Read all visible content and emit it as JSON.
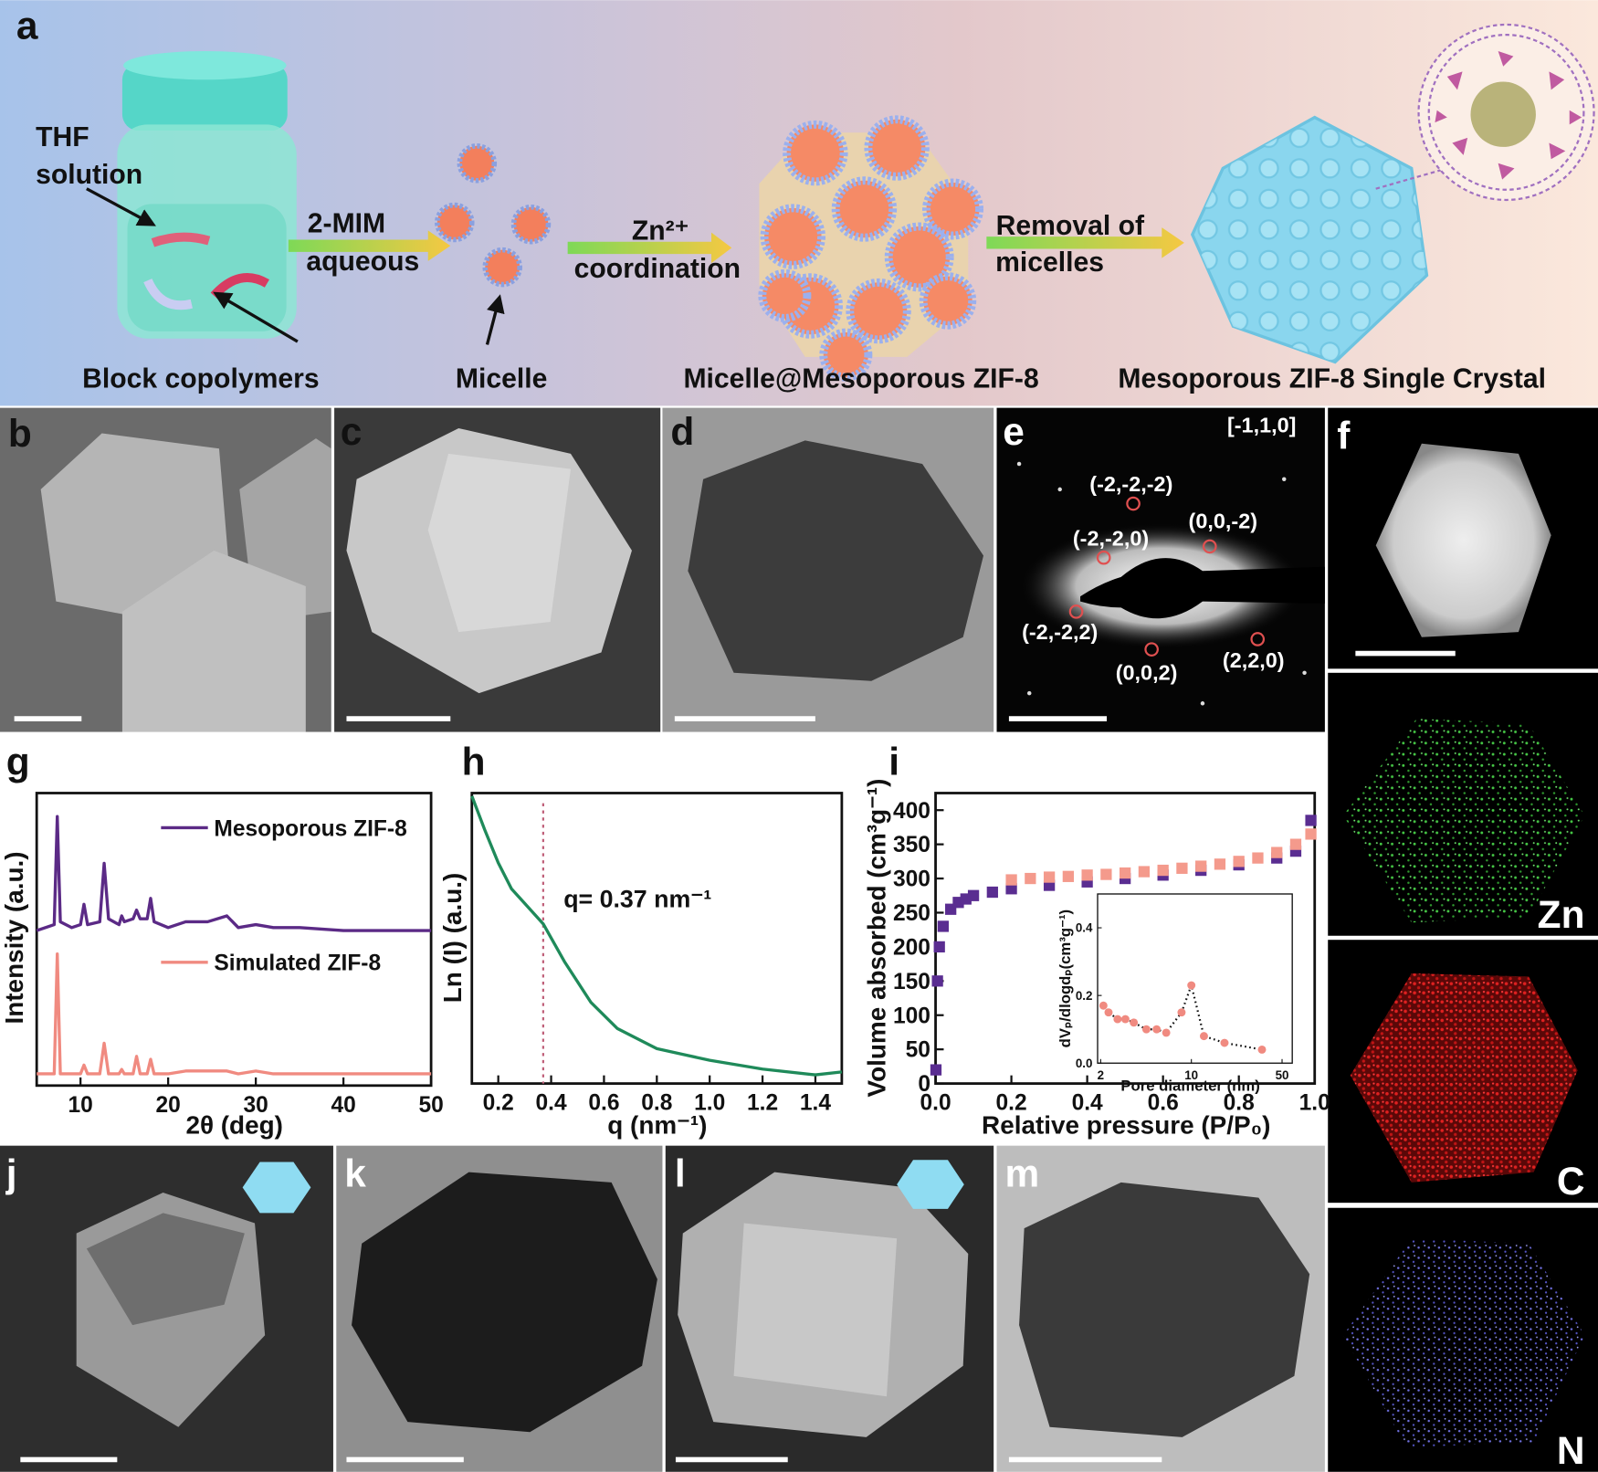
{
  "panel_labels": [
    "a",
    "b",
    "c",
    "d",
    "e",
    "f",
    "g",
    "h",
    "i",
    "j",
    "k",
    "l",
    "m"
  ],
  "schematic": {
    "thf": [
      "THF",
      "solution"
    ],
    "block_copolymers": "Block copolymers",
    "step1": [
      "2-MIM",
      "aqueous"
    ],
    "micelle": "Micelle",
    "step2": [
      "Zn²⁺",
      "coordination"
    ],
    "micelle_zif": "Micelle@Mesoporous ZIF-8",
    "step3": [
      "Removal of",
      "micelles"
    ],
    "product": "Mesoporous ZIF-8 Single Crystal"
  },
  "saed": {
    "zone_axis": "[-1,1,0]",
    "spots": [
      "(-2,-2,-2)",
      "(-2,-2,0)",
      "(0,0,-2)",
      "(-2,-2,2)",
      "(0,0,2)",
      "(2,2,0)"
    ]
  },
  "eds": [
    "Zn",
    "C",
    "N"
  ],
  "chart_data": [
    {
      "type": "line",
      "x_label": "2θ (deg)",
      "y_label": "Intensity (a.u.)",
      "x": [
        5,
        7,
        7.35,
        7.7,
        9,
        10,
        10.4,
        10.8,
        12.2,
        12.7,
        13.2,
        14.4,
        14.7,
        15,
        16,
        16.4,
        16.8,
        17.6,
        18,
        18.4,
        20,
        22,
        24.5,
        26.7,
        28,
        30,
        32,
        35,
        40,
        45,
        50
      ],
      "series": [
        {
          "name": "Mesoporous ZIF-8",
          "color": "#5b2a86",
          "values": [
            53,
            55,
            92,
            56,
            54,
            55,
            62,
            55,
            56,
            76,
            57,
            55,
            58,
            56,
            57,
            60,
            57,
            57,
            64,
            56,
            54,
            56,
            56,
            58,
            54,
            55,
            54,
            54,
            53,
            53,
            53
          ]
        },
        {
          "name": "Simulated ZIF-8",
          "color": "#f08a80",
          "values": [
            4,
            4,
            45,
            4,
            4,
            4,
            7,
            4,
            4,
            14.5,
            4,
            4,
            5.5,
            4,
            4,
            10,
            4,
            4,
            9,
            4,
            4,
            5,
            5,
            5,
            4,
            5,
            4,
            4,
            4,
            4,
            4
          ]
        }
      ],
      "xlim": [
        5,
        50
      ],
      "xticks": [
        10,
        20,
        30,
        40,
        50
      ],
      "ylim": [
        0,
        100
      ]
    },
    {
      "type": "line",
      "x_label": "q (nm⁻¹)",
      "y_label": "Ln (I) (a.u.)",
      "annotation": "q= 0.37 nm⁻¹",
      "vline": 0.37,
      "x": [
        0.1,
        0.15,
        0.2,
        0.25,
        0.3,
        0.37,
        0.45,
        0.55,
        0.65,
        0.8,
        0.9,
        1.0,
        1.2,
        1.4,
        1.5
      ],
      "series": [
        {
          "color": "#1f8a5a",
          "values": [
            99,
            87,
            76,
            67,
            62,
            55,
            42,
            28,
            19,
            12,
            10,
            8,
            5,
            3,
            4
          ]
        }
      ],
      "xlim": [
        0.1,
        1.5
      ],
      "xticks": [
        0.2,
        0.4,
        0.6,
        0.8,
        {
          "value": 1,
          "label": "1.0"
        },
        1.2,
        1.4
      ],
      "ylim": [
        0,
        100
      ]
    },
    {
      "type": "scatter",
      "x_label": "Relative pressure (P/P₀)",
      "y_label": "Volume absorbed (cm³g⁻¹)",
      "series": [
        {
          "color": "#5a2d91",
          "x": [
            0.001,
            0.005,
            0.01,
            0.02,
            0.04,
            0.06,
            0.08,
            0.1,
            0.15,
            0.2,
            0.3,
            0.4,
            0.5,
            0.6,
            0.7,
            0.8,
            0.9,
            0.95,
            0.99
          ],
          "values": [
            20,
            150,
            200,
            230,
            255,
            265,
            270,
            275,
            280,
            285,
            290,
            295,
            300,
            305,
            312,
            320,
            330,
            340,
            385
          ]
        },
        {
          "color": "#f49a8c",
          "x": [
            0.2,
            0.25,
            0.3,
            0.35,
            0.4,
            0.45,
            0.5,
            0.55,
            0.6,
            0.65,
            0.7,
            0.75,
            0.8,
            0.85,
            0.9,
            0.95,
            0.99
          ],
          "values": [
            298,
            300,
            302,
            303,
            305,
            306,
            308,
            310,
            312,
            315,
            318,
            321,
            325,
            330,
            338,
            350,
            365
          ]
        }
      ],
      "xlim": [
        0,
        1
      ],
      "xticks": [
        {
          "value": 0,
          "label": "0.0"
        },
        0.2,
        0.4,
        0.6,
        0.8,
        {
          "value": 1,
          "label": "1.0"
        }
      ],
      "ylim": [
        0,
        425
      ],
      "yticks": [
        0,
        50,
        100,
        150,
        200,
        250,
        300,
        350,
        400
      ],
      "inset": {
        "type": "line",
        "line_style": "dotted",
        "marker": "circle",
        "xscale": "log",
        "x_label": "Pore diameter (nm)",
        "y_label": "dVₚ/dlogdₚ(cm³g⁻¹)",
        "x": [
          2.1,
          2.3,
          2.7,
          3.1,
          3.6,
          4.5,
          5.4,
          6.4,
          8.4,
          10,
          12.5,
          18,
          35
        ],
        "series": [
          {
            "color": "#f08a80",
            "values": [
              0.17,
              0.15,
              0.13,
              0.13,
              0.12,
              0.1,
              0.1,
              0.09,
              0.15,
              0.23,
              0.08,
              0.06,
              0.04
            ]
          }
        ],
        "xlim": [
          2,
          50
        ],
        "xticks": [
          2,
          10,
          50
        ],
        "ylim": [
          0,
          0.5
        ],
        "yticks": [
          {
            "value": 0,
            "label": "0.0"
          },
          0.2,
          0.4
        ]
      }
    }
  ]
}
